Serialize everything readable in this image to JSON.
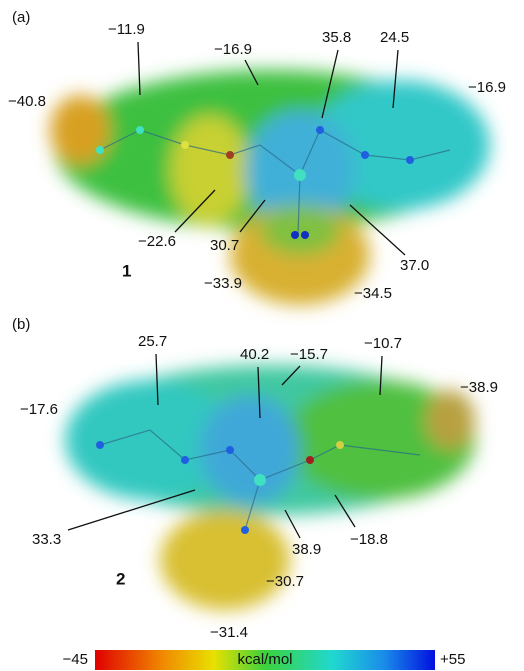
{
  "panels": [
    {
      "label": "(a)",
      "compound": "1",
      "annotations": [
        "−11.9",
        "−16.9",
        "35.8",
        "24.5",
        "−40.8",
        "−16.9",
        "−22.6",
        "30.7",
        "37.0",
        "−33.9",
        "−34.5"
      ]
    },
    {
      "label": "(b)",
      "compound": "2",
      "annotations": [
        "25.7",
        "40.2",
        "−15.7",
        "−10.7",
        "−38.9",
        "−17.6",
        "33.3",
        "38.9",
        "−18.8",
        "−30.7",
        "−31.4"
      ]
    }
  ],
  "colorbar": {
    "min_label": "−45",
    "unit": "kcal/mol",
    "max_label": "+55"
  }
}
